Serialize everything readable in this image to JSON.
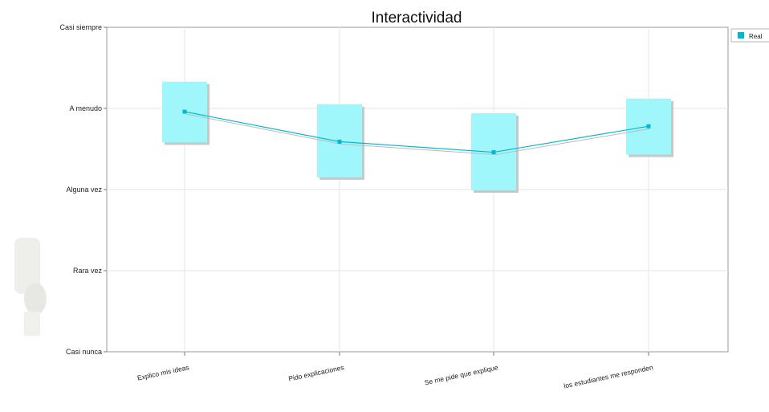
{
  "chart_data": {
    "type": "line",
    "title": "Interactividad",
    "xlabel": "",
    "ylabel": "",
    "categories": [
      "Explico mis ideas",
      "Pido explicaciones",
      "Se me pide que explique",
      "los estudiantes me responden"
    ],
    "y_tick_labels": [
      "Casi nunca",
      "Rara vez",
      "Alguna vez",
      "A menudo",
      "Casi siempre"
    ],
    "ylim": [
      1,
      5
    ],
    "grid": true,
    "legend_position": "top-right",
    "series": [
      {
        "name": "Real",
        "color": "#00b8d4",
        "values": [
          3.96,
          3.59,
          3.46,
          3.78
        ],
        "box_low": [
          3.58,
          3.15,
          2.99,
          3.43
        ],
        "box_high": [
          4.33,
          4.05,
          3.94,
          4.12
        ]
      }
    ],
    "box_color": "#9ff7fb",
    "shadow_color": "#c8c8c8"
  }
}
